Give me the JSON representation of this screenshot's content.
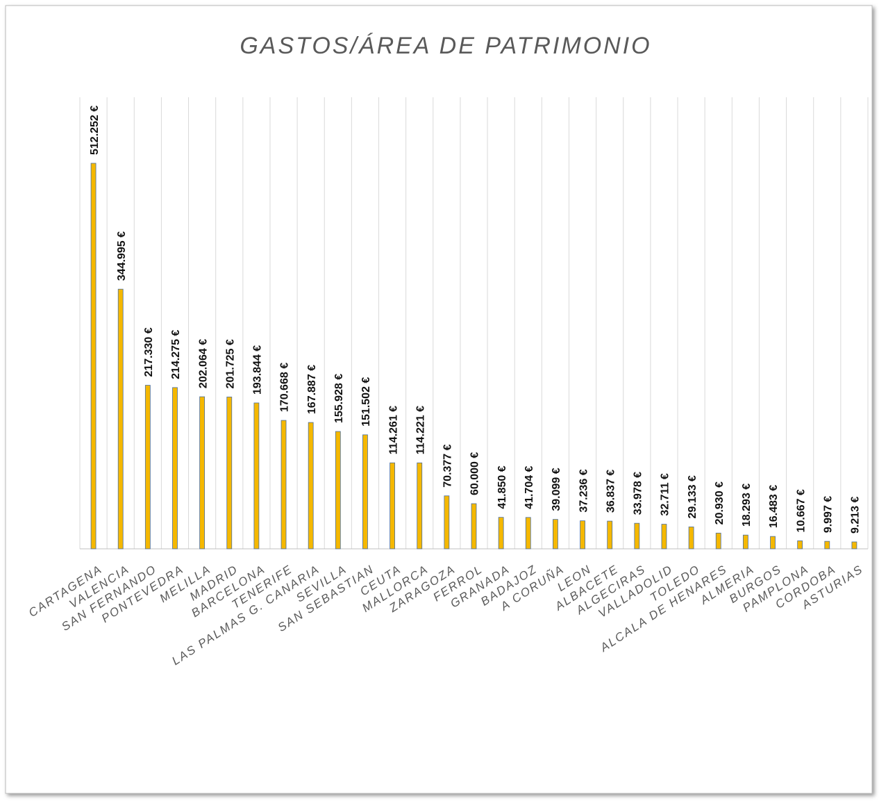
{
  "chart_data": {
    "type": "bar",
    "title": "GASTOS/ÁREA DE PATRIMONIO",
    "categories": [
      "CARTAGENA",
      "VALENCIA",
      "SAN FERNANDO",
      "PONTEVEDRA",
      "MELILLA",
      "MADRID",
      "BARCELONA",
      "TENERIFE",
      "LAS PALMAS G. CANARIA",
      "SEVILLA",
      "SAN SEBASTIAN",
      "CEUTA",
      "MALLORCA",
      "ZARAGOZA",
      "FERROL",
      "GRANADA",
      "BADAJOZ",
      "A CORUÑA",
      "LEON",
      "ALBACETE",
      "ALGECIRAS",
      "VALLADOLID",
      "TOLEDO",
      "ALCALA DE HENARES",
      "ALMERIA",
      "BURGOS",
      "PAMPLONA",
      "CORDOBA",
      "ASTURIAS"
    ],
    "values": [
      512252,
      344995,
      217330,
      214275,
      202064,
      201725,
      193844,
      170668,
      167887,
      155928,
      151502,
      114261,
      114221,
      70377,
      60000,
      41850,
      41704,
      39099,
      37236,
      36837,
      33978,
      32711,
      29133,
      20930,
      18293,
      16483,
      10667,
      9997,
      9213
    ],
    "value_labels": [
      "512.252 €",
      "344.995 €",
      "217.330 €",
      "214.275 €",
      "202.064 €",
      "201.725 €",
      "193.844 €",
      "170.668 €",
      "167.887 €",
      "155.928 €",
      "151.502 €",
      "114.261 €",
      "114.221 €",
      "70.377 €",
      "60.000 €",
      "41.850 €",
      "41.704 €",
      "39.099 €",
      "37.236 €",
      "36.837 €",
      "33.978 €",
      "32.711 €",
      "29.133 €",
      "20.930 €",
      "18.293 €",
      "16.483 €",
      "10.667 €",
      "9.997 €",
      "9.213 €"
    ],
    "color": "#f5b800",
    "grid": true
  }
}
